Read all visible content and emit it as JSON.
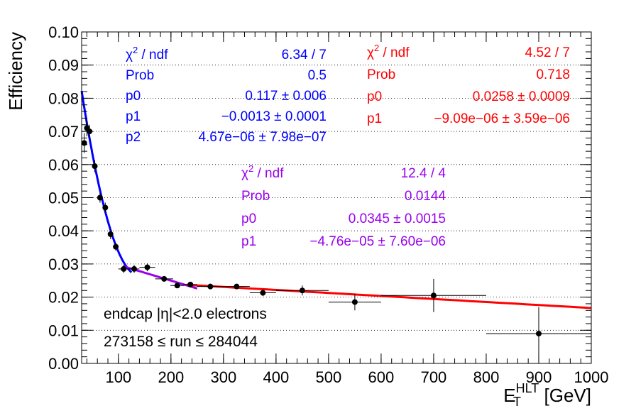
{
  "chart_data": {
    "type": "scatter",
    "title": "",
    "ylabel": "Efficiency",
    "xlabel": {
      "base": "E",
      "sub": "T",
      "sup": "HLT",
      "unit": " [GeV]"
    },
    "xlim": [
      30,
      1000
    ],
    "ylim": [
      0,
      0.1
    ],
    "xticks": [
      100,
      200,
      300,
      400,
      500,
      600,
      700,
      800,
      900,
      1000
    ],
    "yticks": [
      "0.00",
      "0.01",
      "0.02",
      "0.03",
      "0.04",
      "0.05",
      "0.06",
      "0.07",
      "0.08",
      "0.09",
      "0.10"
    ],
    "grid": "horizontal dotted",
    "points": [
      {
        "x": 35,
        "xerr": 2.5,
        "y": 0.0665,
        "yerr": 0.003
      },
      {
        "x": 40,
        "xerr": 2.5,
        "y": 0.071,
        "yerr": 0.0025
      },
      {
        "x": 45,
        "xerr": 2.5,
        "y": 0.07,
        "yerr": 0.002
      },
      {
        "x": 55,
        "xerr": 5,
        "y": 0.0595,
        "yerr": 0.0018
      },
      {
        "x": 65,
        "xerr": 5,
        "y": 0.05,
        "yerr": 0.0015
      },
      {
        "x": 75,
        "xerr": 5,
        "y": 0.047,
        "yerr": 0.0015
      },
      {
        "x": 85,
        "xerr": 5,
        "y": 0.039,
        "yerr": 0.0015
      },
      {
        "x": 95,
        "xerr": 5,
        "y": 0.0352,
        "yerr": 0.0012
      },
      {
        "x": 110,
        "xerr": 10,
        "y": 0.0285,
        "yerr": 0.0012
      },
      {
        "x": 130,
        "xerr": 10,
        "y": 0.0285,
        "yerr": 0.0012
      },
      {
        "x": 155,
        "xerr": 15,
        "y": 0.029,
        "yerr": 0.0012
      },
      {
        "x": 187,
        "xerr": 17,
        "y": 0.0255,
        "yerr": 0.0008
      },
      {
        "x": 212,
        "xerr": 13,
        "y": 0.0235,
        "yerr": 0.0008
      },
      {
        "x": 237,
        "xerr": 13,
        "y": 0.0238,
        "yerr": 0.0008
      },
      {
        "x": 275,
        "xerr": 25,
        "y": 0.0232,
        "yerr": 0.0008
      },
      {
        "x": 325,
        "xerr": 25,
        "y": 0.0232,
        "yerr": 0.0008
      },
      {
        "x": 375,
        "xerr": 25,
        "y": 0.0213,
        "yerr": 0.001
      },
      {
        "x": 450,
        "xerr": 50,
        "y": 0.022,
        "yerr": 0.0015
      },
      {
        "x": 550,
        "xerr": 50,
        "y": 0.0185,
        "yerr": 0.0025
      },
      {
        "x": 700,
        "xerr": 100,
        "y": 0.0205,
        "yerr": 0.005
      },
      {
        "x": 900,
        "xerr": 100,
        "y": 0.009,
        "yerr": 0.008
      }
    ],
    "fits": [
      {
        "color": "#0000ff",
        "x_range": [
          30,
          125
        ],
        "model": "quadratic",
        "params": [
          0.117,
          -0.0013,
          4.67e-06
        ]
      },
      {
        "color": "#9900ee",
        "x_range": [
          110,
          250
        ],
        "model": "linear",
        "params": [
          0.0345,
          -4.76e-05
        ]
      },
      {
        "color": "#ff0000",
        "x_range": [
          230,
          1000
        ],
        "model": "linear",
        "params": [
          0.0258,
          -9.09e-06
        ]
      }
    ],
    "stat_boxes": [
      {
        "color": "#0000ff",
        "rows": [
          {
            "label": "χ2 / ndf",
            "value": "6.34 / 7"
          },
          {
            "label": "Prob",
            "value": "0.5"
          },
          {
            "label": "p0",
            "value": "0.117 ± 0.006"
          },
          {
            "label": "p1",
            "value": "−0.0013 ± 0.0001"
          },
          {
            "label": "p2",
            "value": "4.67e−06 ± 7.98e−07"
          }
        ]
      },
      {
        "color": "#ff0000",
        "rows": [
          {
            "label": "χ2 / ndf",
            "value": "4.52 / 7"
          },
          {
            "label": "Prob",
            "value": "0.718"
          },
          {
            "label": "p0",
            "value": "0.0258 ± 0.0009"
          },
          {
            "label": "p1",
            "value": "−9.09e−06 ± 3.59e−06"
          }
        ]
      },
      {
        "color": "#9900ee",
        "rows": [
          {
            "label": "χ2 / ndf",
            "value": "12.4 / 4"
          },
          {
            "label": "Prob",
            "value": "0.0144"
          },
          {
            "label": "p0",
            "value": "0.0345 ± 0.0015"
          },
          {
            "label": "p1",
            "value": "−4.76e−05 ± 7.60e−06"
          }
        ]
      }
    ],
    "annotations": [
      "endcap |η|<2.0 electrons",
      "273158 ≤ run ≤ 284044"
    ]
  }
}
